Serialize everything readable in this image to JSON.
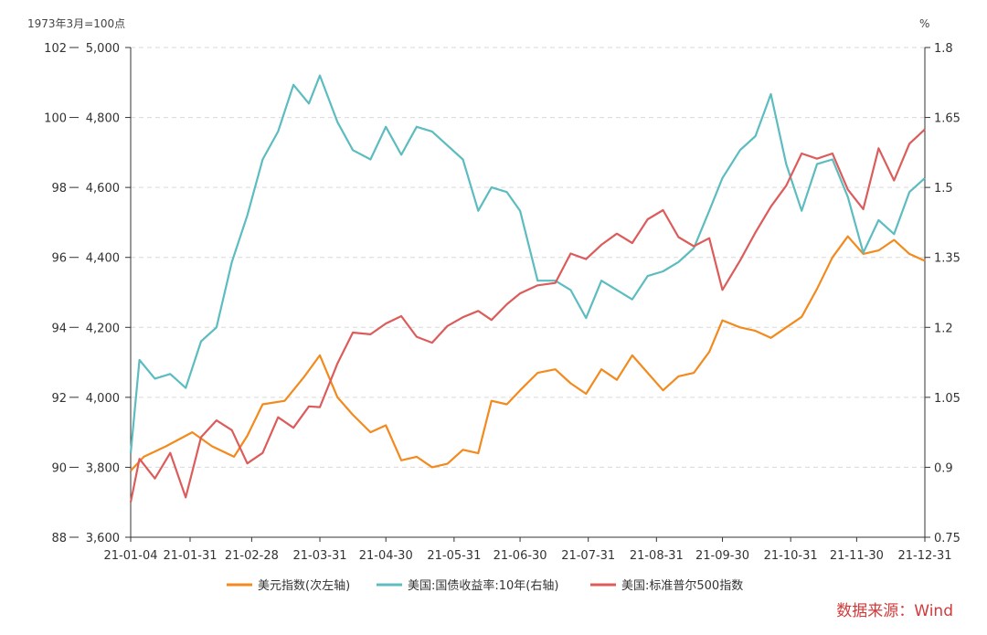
{
  "chart_data": {
    "type": "line",
    "title": "",
    "left_axis_label": "1973年3月=100点",
    "right_axis_label": "%",
    "y_outer_left": {
      "ticks": [
        "102",
        "100",
        "98",
        "96",
        "94",
        "92",
        "90",
        "88"
      ],
      "range": [
        88,
        102
      ]
    },
    "y_inner_left": {
      "ticks": [
        "5,000",
        "4,800",
        "4,600",
        "4,400",
        "4,200",
        "4,000",
        "3,800",
        "3,600"
      ],
      "range": [
        3600,
        5000
      ]
    },
    "y_right": {
      "ticks": [
        "1.8",
        "1.65",
        "1.5",
        "1.35",
        "1.2",
        "1.05",
        "0.9",
        "0.75"
      ],
      "range": [
        0.75,
        1.8
      ]
    },
    "x_ticks": [
      "21-01-04",
      "21-01-31",
      "21-02-28",
      "21-03-31",
      "21-04-30",
      "21-05-31",
      "21-06-30",
      "21-07-31",
      "21-08-31",
      "21-09-30",
      "21-10-31",
      "21-11-30",
      "21-12-31"
    ],
    "grid": "horizontal-dashed",
    "legend_position": "bottom",
    "series": [
      {
        "name": "美元指数(次左轴)",
        "axis": "outer_left",
        "color": "#f28a1e",
        "x": [
          "21-01-04",
          "21-01-10",
          "21-01-20",
          "21-02-01",
          "21-02-10",
          "21-02-20",
          "21-02-26",
          "21-03-05",
          "21-03-15",
          "21-03-24",
          "21-03-31",
          "21-04-08",
          "21-04-15",
          "21-04-23",
          "21-04-30",
          "21-05-07",
          "21-05-14",
          "21-05-21",
          "21-05-28",
          "21-06-04",
          "21-06-11",
          "21-06-17",
          "21-06-24",
          "21-06-30",
          "21-07-08",
          "21-07-16",
          "21-07-23",
          "21-07-30",
          "21-08-06",
          "21-08-13",
          "21-08-20",
          "21-08-27",
          "21-09-03",
          "21-09-10",
          "21-09-17",
          "21-09-24",
          "21-09-30",
          "21-10-08",
          "21-10-15",
          "21-10-22",
          "21-10-29",
          "21-11-05",
          "21-11-12",
          "21-11-19",
          "21-11-26",
          "21-12-03",
          "21-12-10",
          "21-12-17",
          "21-12-24",
          "21-12-31"
        ],
        "values": [
          89.9,
          90.3,
          90.6,
          91.0,
          90.6,
          90.3,
          90.9,
          91.8,
          91.9,
          92.6,
          93.2,
          92.0,
          91.5,
          91.0,
          91.2,
          90.2,
          90.3,
          90.0,
          90.1,
          90.5,
          90.4,
          91.9,
          91.8,
          92.2,
          92.7,
          92.8,
          92.4,
          92.1,
          92.8,
          92.5,
          93.2,
          92.7,
          92.2,
          92.6,
          92.7,
          93.3,
          94.2,
          94.0,
          93.9,
          93.7,
          94.0,
          94.3,
          95.1,
          96.0,
          96.6,
          96.1,
          96.2,
          96.5,
          96.1,
          95.9
        ]
      },
      {
        "name": "美国:国债收益率:10年(右轴)",
        "axis": "right",
        "color": "#5cbcc0",
        "x": [
          "21-01-04",
          "21-01-08",
          "21-01-15",
          "21-01-22",
          "21-01-29",
          "21-02-05",
          "21-02-12",
          "21-02-19",
          "21-02-26",
          "21-03-05",
          "21-03-12",
          "21-03-19",
          "21-03-26",
          "21-03-31",
          "21-04-08",
          "21-04-15",
          "21-04-23",
          "21-04-30",
          "21-05-07",
          "21-05-14",
          "21-05-21",
          "21-05-28",
          "21-06-04",
          "21-06-11",
          "21-06-17",
          "21-06-24",
          "21-06-30",
          "21-07-08",
          "21-07-16",
          "21-07-23",
          "21-07-30",
          "21-08-06",
          "21-08-13",
          "21-08-20",
          "21-08-27",
          "21-09-03",
          "21-09-10",
          "21-09-17",
          "21-09-24",
          "21-09-30",
          "21-10-08",
          "21-10-15",
          "21-10-22",
          "21-10-29",
          "21-11-05",
          "21-11-12",
          "21-11-19",
          "21-11-26",
          "21-12-03",
          "21-12-10",
          "21-12-17",
          "21-12-24",
          "21-12-31"
        ],
        "values": [
          0.93,
          1.13,
          1.09,
          1.1,
          1.07,
          1.17,
          1.2,
          1.34,
          1.44,
          1.56,
          1.62,
          1.72,
          1.68,
          1.74,
          1.64,
          1.58,
          1.56,
          1.63,
          1.57,
          1.63,
          1.62,
          1.59,
          1.56,
          1.45,
          1.5,
          1.49,
          1.45,
          1.3,
          1.3,
          1.28,
          1.22,
          1.3,
          1.28,
          1.26,
          1.31,
          1.32,
          1.34,
          1.37,
          1.45,
          1.52,
          1.58,
          1.61,
          1.7,
          1.55,
          1.45,
          1.55,
          1.56,
          1.48,
          1.36,
          1.43,
          1.4,
          1.49,
          1.52
        ]
      },
      {
        "name": "美国:标准普尔500指数",
        "axis": "inner_left",
        "color": "#dc5c5c",
        "x": [
          "21-01-04",
          "21-01-08",
          "21-01-15",
          "21-01-22",
          "21-01-29",
          "21-02-05",
          "21-02-12",
          "21-02-19",
          "21-02-26",
          "21-03-05",
          "21-03-12",
          "21-03-19",
          "21-03-26",
          "21-03-31",
          "21-04-08",
          "21-04-15",
          "21-04-23",
          "21-04-30",
          "21-05-07",
          "21-05-14",
          "21-05-21",
          "21-05-28",
          "21-06-04",
          "21-06-11",
          "21-06-17",
          "21-06-24",
          "21-06-30",
          "21-07-08",
          "21-07-16",
          "21-07-23",
          "21-07-30",
          "21-08-06",
          "21-08-13",
          "21-08-20",
          "21-08-27",
          "21-09-03",
          "21-09-10",
          "21-09-17",
          "21-09-24",
          "21-09-30",
          "21-10-08",
          "21-10-15",
          "21-10-22",
          "21-10-29",
          "21-11-05",
          "21-11-12",
          "21-11-19",
          "21-11-26",
          "21-12-03",
          "21-12-10",
          "21-12-17",
          "21-12-24",
          "21-12-31"
        ],
        "values": [
          3700,
          3824,
          3768,
          3841,
          3714,
          3886,
          3934,
          3906,
          3811,
          3841,
          3943,
          3913,
          3974,
          3972,
          4097,
          4185,
          4180,
          4211,
          4232,
          4173,
          4156,
          4204,
          4229,
          4247,
          4221,
          4266,
          4297,
          4320,
          4327,
          4411,
          4395,
          4436,
          4468,
          4441,
          4509,
          4535,
          4458,
          4432,
          4455,
          4307,
          4391,
          4471,
          4545,
          4605,
          4697,
          4682,
          4697,
          4594,
          4538,
          4712,
          4620,
          4725,
          4766
        ]
      }
    ]
  },
  "source_label": "数据来源：Wind"
}
